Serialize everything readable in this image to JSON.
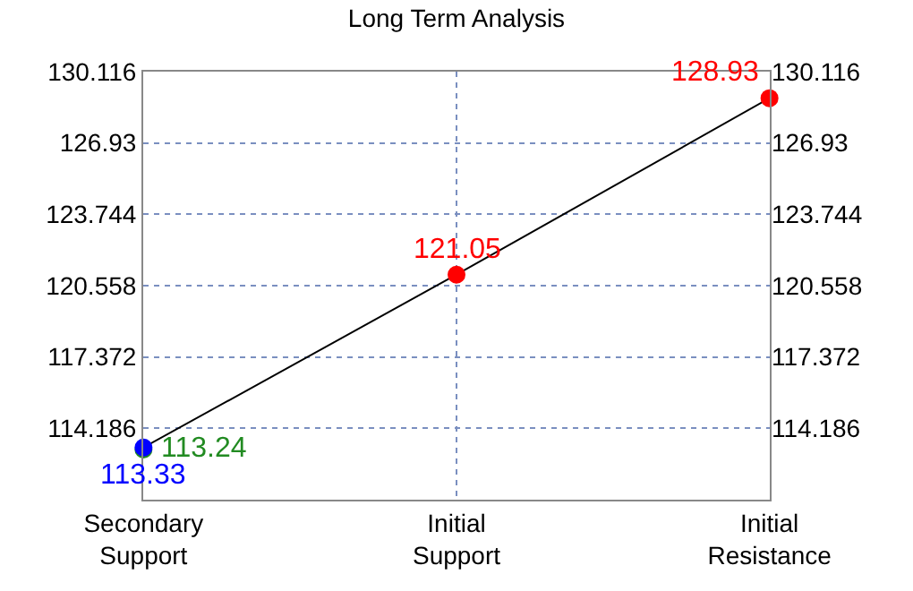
{
  "chart_data": {
    "type": "line",
    "title": "Long Term Analysis",
    "categories": [
      "Secondary\nSupport",
      "Initial\nSupport",
      "Initial\nResistance"
    ],
    "series": [
      {
        "type": "scatter",
        "color": "#228b22",
        "values": [
          113.24,
          null,
          null
        ],
        "value_labels": [
          "113.24",
          null,
          null
        ]
      },
      {
        "color": "#000000",
        "colors": [
          "#0000ff",
          "#ff0000",
          "#ff0000"
        ],
        "values": [
          113.33,
          121.05,
          128.93
        ],
        "value_labels": [
          "113.33",
          "121.05",
          "128.93"
        ]
      }
    ],
    "ylim": [
      111.0,
      130.116
    ],
    "yticks": [
      114.186,
      117.372,
      120.558,
      123.744,
      126.93,
      130.116
    ],
    "y2lim": [
      111.0,
      130.116
    ],
    "y2ticks": [
      114.186,
      117.372,
      120.558,
      123.744,
      126.93,
      130.116
    ],
    "grid": true,
    "marker": "circle"
  }
}
